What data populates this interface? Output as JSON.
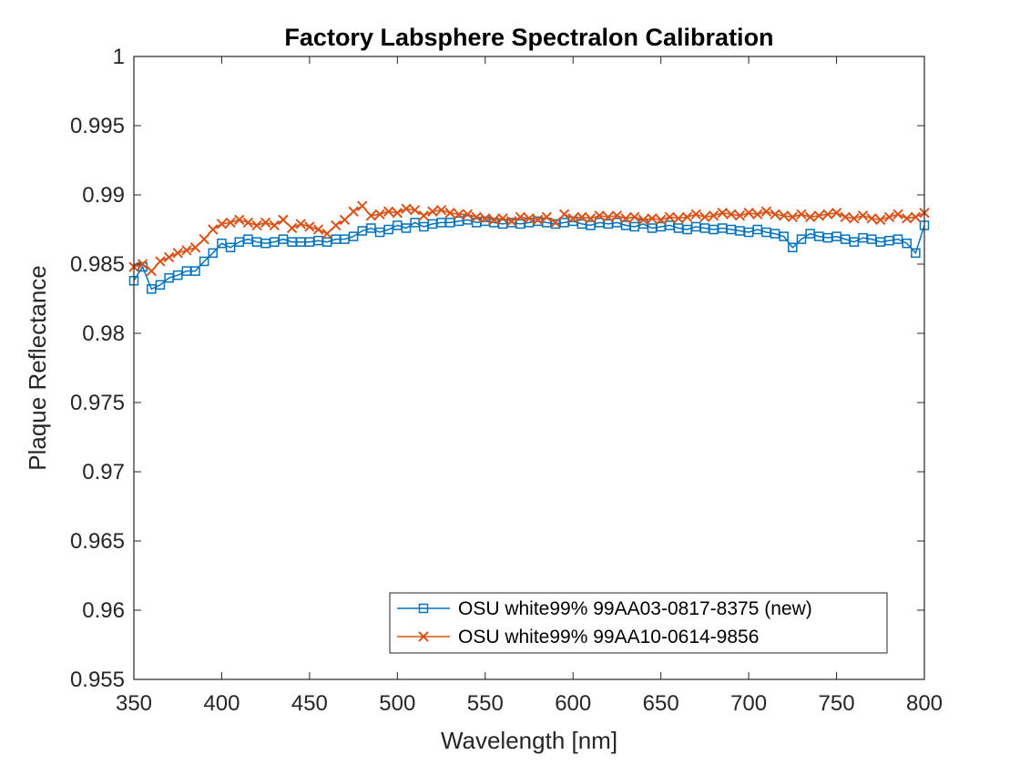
{
  "chart_data": {
    "type": "line",
    "title": "Factory Labsphere Spectralon Calibration",
    "xlabel": "Wavelength [nm]",
    "ylabel": "Plaque Reflectance",
    "xlim": [
      350,
      800
    ],
    "ylim": [
      0.955,
      1
    ],
    "xticks": [
      350,
      400,
      450,
      500,
      550,
      600,
      650,
      700,
      750,
      800
    ],
    "yticks": [
      0.955,
      0.96,
      0.965,
      0.97,
      0.975,
      0.98,
      0.985,
      0.99,
      0.995,
      1
    ],
    "ytick_labels": [
      "0.955",
      "0.96",
      "0.965",
      "0.97",
      "0.975",
      "0.98",
      "0.985",
      "0.99",
      "0.995",
      "1"
    ],
    "grid": false,
    "legend_position": "bottom-right",
    "series": [
      {
        "name": "OSU white99% 99AA03-0817-8375 (new)",
        "color": "#0072BD",
        "marker": "square",
        "x": [
          350,
          355,
          360,
          365,
          370,
          375,
          380,
          385,
          390,
          395,
          400,
          405,
          410,
          415,
          420,
          425,
          430,
          435,
          440,
          445,
          450,
          455,
          460,
          465,
          470,
          475,
          480,
          485,
          490,
          495,
          500,
          505,
          510,
          515,
          520,
          525,
          530,
          535,
          540,
          545,
          550,
          555,
          560,
          565,
          570,
          575,
          580,
          585,
          590,
          595,
          600,
          605,
          610,
          615,
          620,
          625,
          630,
          635,
          640,
          645,
          650,
          655,
          660,
          665,
          670,
          675,
          680,
          685,
          690,
          695,
          700,
          705,
          710,
          715,
          720,
          725,
          730,
          735,
          740,
          745,
          750,
          755,
          760,
          765,
          770,
          775,
          780,
          785,
          790,
          795,
          800
        ],
        "y": [
          0.9838,
          0.9848,
          0.9832,
          0.9835,
          0.984,
          0.9842,
          0.9845,
          0.9845,
          0.9852,
          0.9858,
          0.9865,
          0.9862,
          0.9866,
          0.9868,
          0.9866,
          0.9865,
          0.9866,
          0.9868,
          0.9866,
          0.9866,
          0.9866,
          0.9867,
          0.9866,
          0.9868,
          0.9868,
          0.987,
          0.9874,
          0.9876,
          0.9873,
          0.9875,
          0.9878,
          0.9876,
          0.988,
          0.9877,
          0.9879,
          0.988,
          0.988,
          0.9881,
          0.9882,
          0.988,
          0.9881,
          0.988,
          0.9879,
          0.988,
          0.9879,
          0.988,
          0.9881,
          0.988,
          0.9879,
          0.988,
          0.9881,
          0.9879,
          0.9878,
          0.988,
          0.9879,
          0.988,
          0.9878,
          0.9877,
          0.9879,
          0.9876,
          0.9877,
          0.9878,
          0.9876,
          0.9875,
          0.9877,
          0.9876,
          0.9875,
          0.9876,
          0.9875,
          0.9874,
          0.9873,
          0.9875,
          0.9873,
          0.9872,
          0.987,
          0.9862,
          0.9868,
          0.9872,
          0.987,
          0.9869,
          0.987,
          0.9868,
          0.9866,
          0.9869,
          0.9868,
          0.9866,
          0.9867,
          0.9868,
          0.9865,
          0.9858,
          0.9878
        ]
      },
      {
        "name": "OSU white99% 99AA10-0614-9856",
        "color": "#D95319",
        "marker": "x",
        "x": [
          350,
          355,
          360,
          365,
          370,
          375,
          380,
          385,
          390,
          395,
          400,
          405,
          410,
          415,
          420,
          425,
          430,
          435,
          440,
          445,
          450,
          455,
          460,
          465,
          470,
          475,
          480,
          485,
          490,
          495,
          500,
          505,
          510,
          515,
          520,
          525,
          530,
          535,
          540,
          545,
          550,
          555,
          560,
          565,
          570,
          575,
          580,
          585,
          590,
          595,
          600,
          605,
          610,
          615,
          620,
          625,
          630,
          635,
          640,
          645,
          650,
          655,
          660,
          665,
          670,
          675,
          680,
          685,
          690,
          695,
          700,
          705,
          710,
          715,
          720,
          725,
          730,
          735,
          740,
          745,
          750,
          755,
          760,
          765,
          770,
          775,
          780,
          785,
          790,
          795,
          800
        ],
        "y": [
          0.9848,
          0.985,
          0.9845,
          0.9852,
          0.9855,
          0.9858,
          0.986,
          0.9862,
          0.9868,
          0.9875,
          0.9879,
          0.988,
          0.9882,
          0.988,
          0.9878,
          0.988,
          0.9878,
          0.9882,
          0.9876,
          0.9879,
          0.9877,
          0.9875,
          0.9872,
          0.9878,
          0.9882,
          0.9888,
          0.9892,
          0.9885,
          0.9886,
          0.9888,
          0.9887,
          0.989,
          0.9889,
          0.9885,
          0.9888,
          0.9889,
          0.9887,
          0.9886,
          0.9886,
          0.9884,
          0.9883,
          0.9882,
          0.9883,
          0.9881,
          0.9884,
          0.9883,
          0.9882,
          0.9884,
          0.988,
          0.9886,
          0.9883,
          0.9884,
          0.9883,
          0.9885,
          0.9884,
          0.9885,
          0.9883,
          0.9884,
          0.9882,
          0.9883,
          0.9882,
          0.9884,
          0.9883,
          0.9884,
          0.9886,
          0.9884,
          0.9885,
          0.9887,
          0.9886,
          0.9885,
          0.9887,
          0.9886,
          0.9888,
          0.9886,
          0.9885,
          0.9884,
          0.9886,
          0.9884,
          0.9885,
          0.9886,
          0.9887,
          0.9884,
          0.9883,
          0.9885,
          0.9883,
          0.9882,
          0.9884,
          0.9886,
          0.9883,
          0.9884,
          0.9887
        ]
      }
    ]
  }
}
